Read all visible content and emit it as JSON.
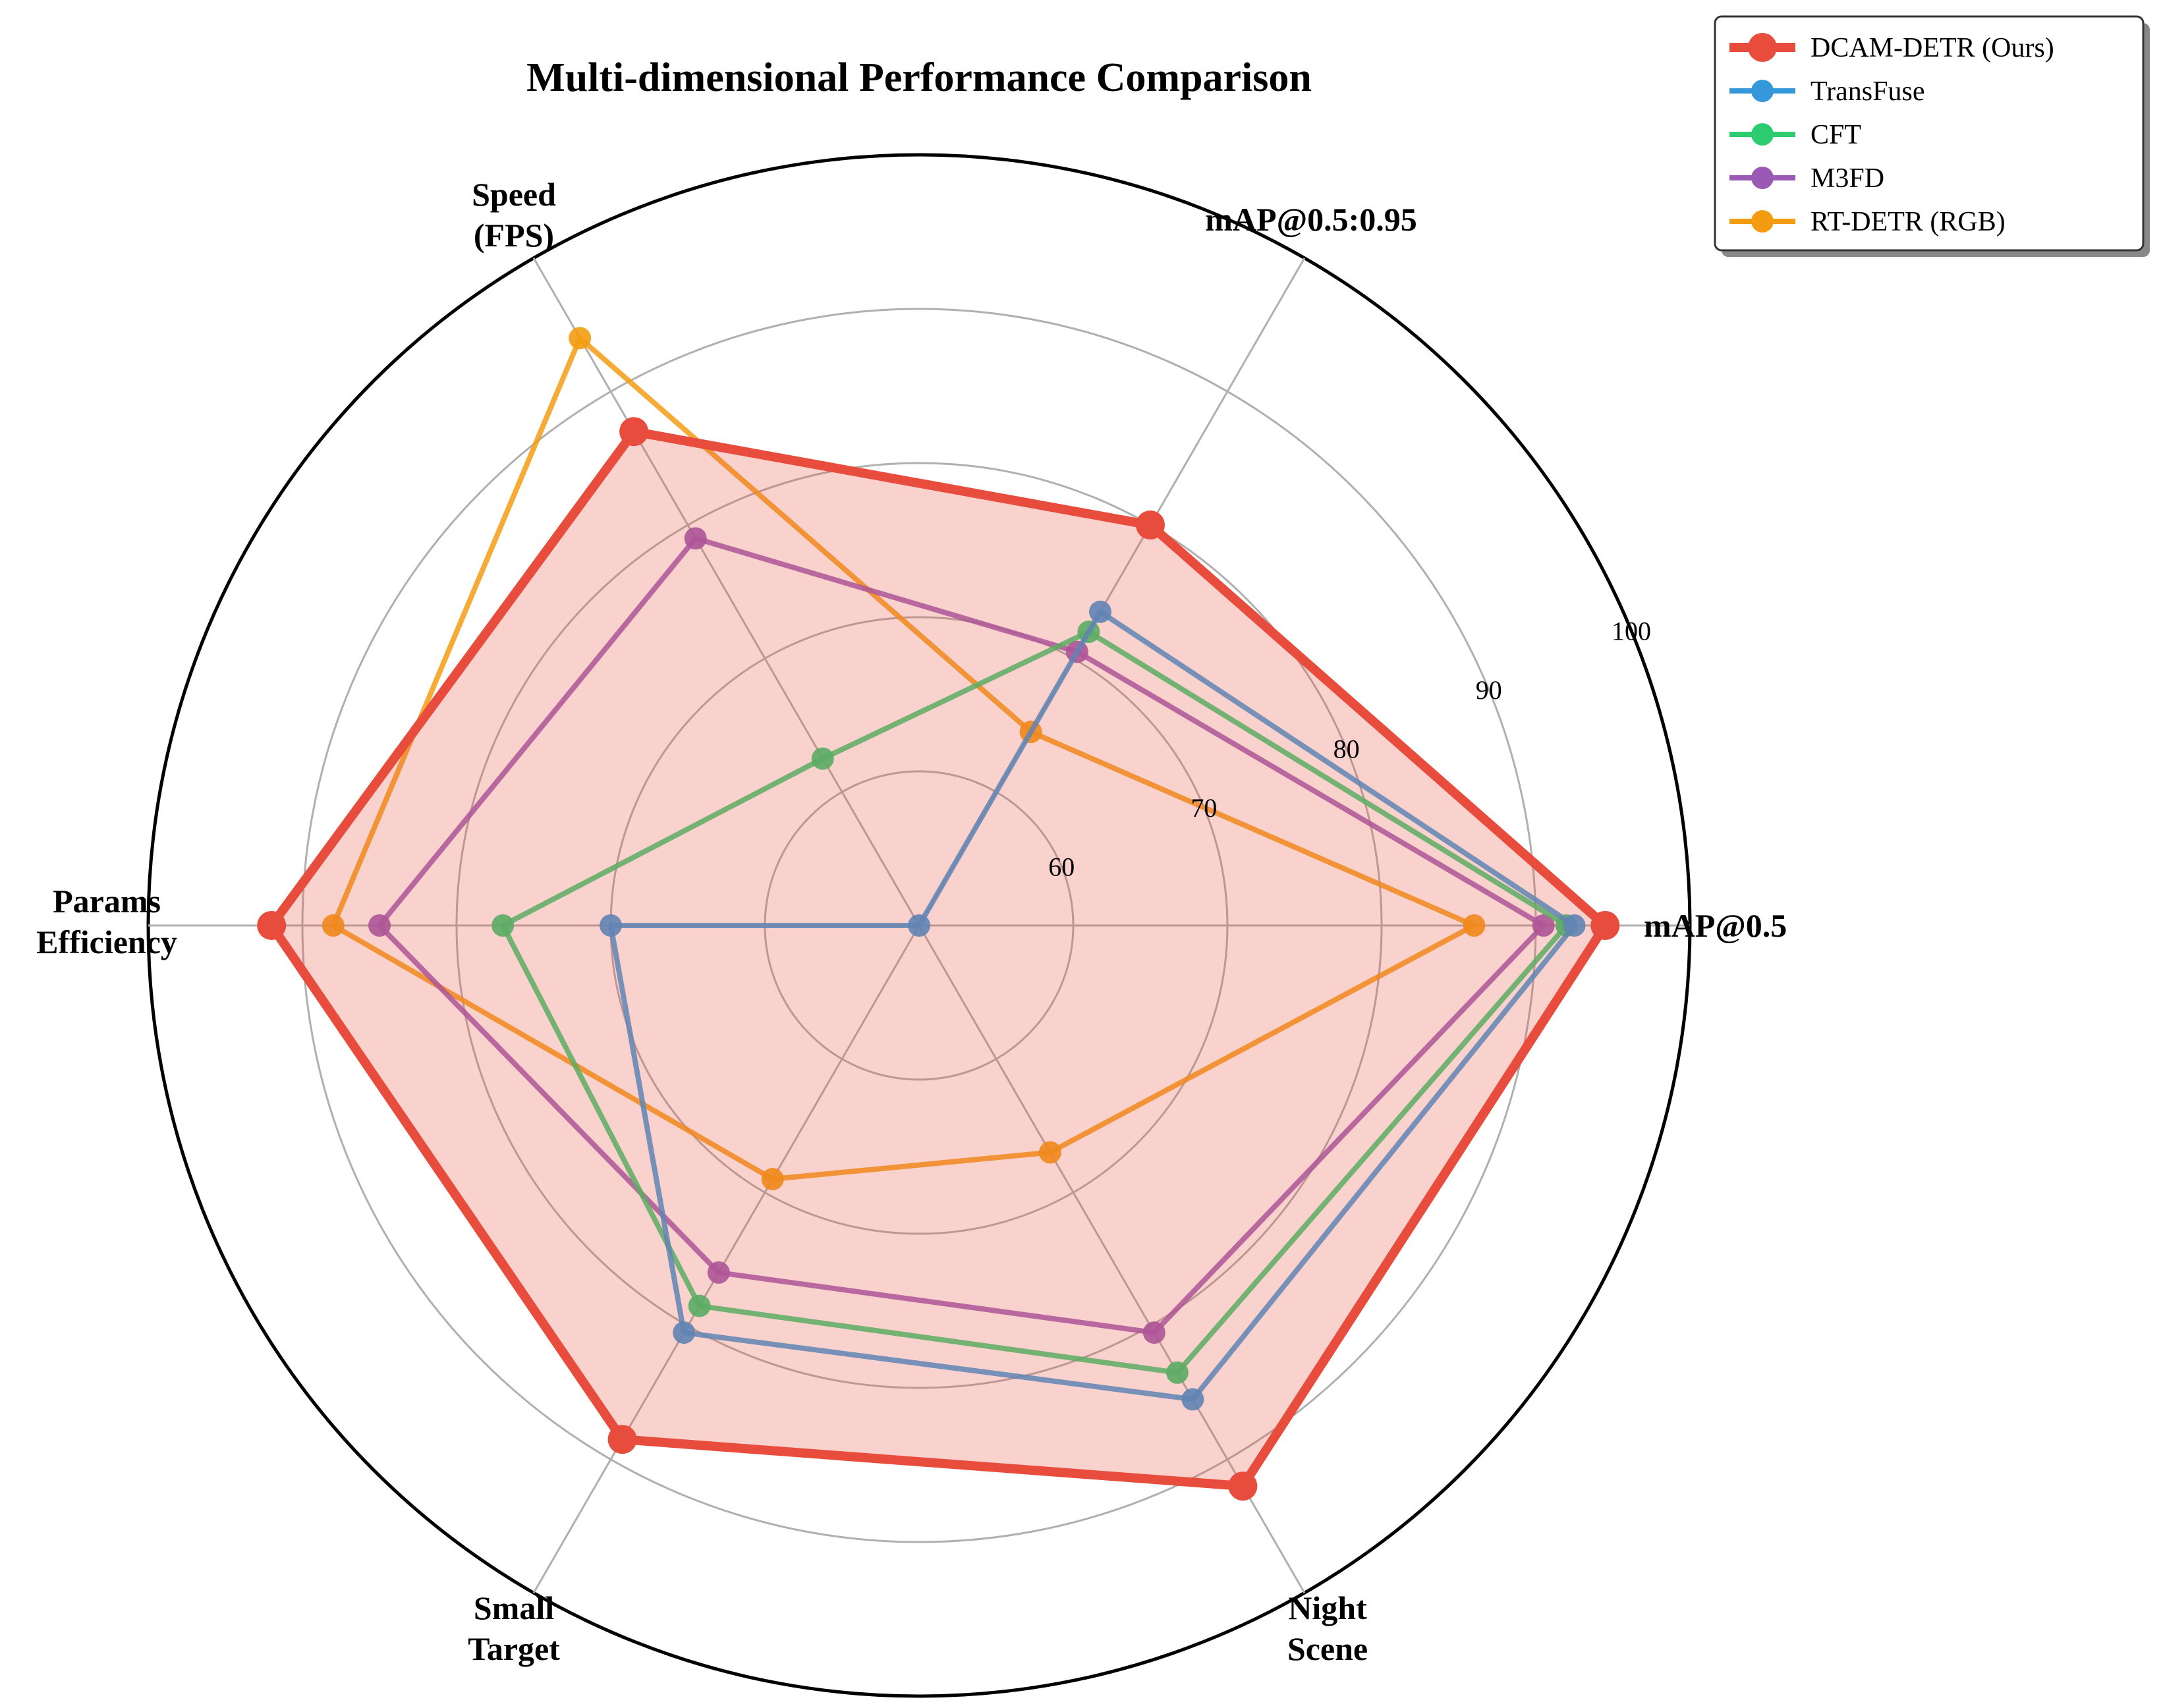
{
  "chart_data": {
    "type": "radar",
    "title": "Multi-dimensional Performance Comparison",
    "axes": [
      [
        "mAP@0.5"
      ],
      [
        "mAP@0.5:0.95"
      ],
      [
        "Speed",
        "(FPS)"
      ],
      [
        "Params",
        "Efficiency"
      ],
      [
        "Small",
        "Target"
      ],
      [
        "Night",
        "Scene"
      ]
    ],
    "rlim": [
      50,
      100
    ],
    "r_ticks": [
      60,
      70,
      80,
      90,
      100
    ],
    "grid": true,
    "legend_position": "top-right",
    "series": [
      {
        "name": "DCAM-DETR (Ours)",
        "color": "#e74c3c",
        "values": [
          94.5,
          80.0,
          87.0,
          92.0,
          88.5,
          92.0
        ],
        "filled": true
      },
      {
        "name": "TransFuse",
        "color": "#3498db",
        "values": [
          92.5,
          73.5,
          50.0,
          70.0,
          80.5,
          85.5
        ],
        "filled": false
      },
      {
        "name": "CFT",
        "color": "#2ecc71",
        "values": [
          92.0,
          72.0,
          62.5,
          77.0,
          78.5,
          83.5
        ],
        "filled": false
      },
      {
        "name": "M3FD",
        "color": "#9b59b6",
        "values": [
          90.5,
          70.5,
          79.0,
          85.0,
          76.0,
          80.5
        ],
        "filled": false
      },
      {
        "name": "RT-DETR (RGB)",
        "color": "#f39c12",
        "values": [
          86.0,
          64.5,
          94.0,
          88.0,
          69.0,
          67.0
        ],
        "filled": false
      }
    ]
  }
}
